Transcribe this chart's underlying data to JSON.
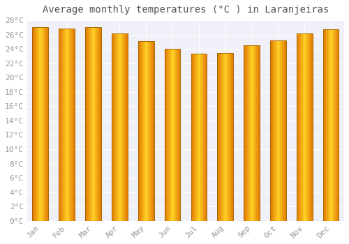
{
  "title": "Average monthly temperatures (°C ) in Laranjeiras",
  "months": [
    "Jan",
    "Feb",
    "Mar",
    "Apr",
    "May",
    "Jun",
    "Jul",
    "Aug",
    "Sep",
    "Oct",
    "Nov",
    "Dec"
  ],
  "values": [
    27.0,
    26.8,
    27.0,
    26.2,
    25.1,
    24.0,
    23.3,
    23.4,
    24.5,
    25.2,
    26.2,
    26.7
  ],
  "bar_color_center": "#FFB800",
  "bar_color_edge": "#E07800",
  "bar_outline_color": "#AA6600",
  "ylim": [
    0,
    28
  ],
  "ytick_step": 2,
  "background_color": "#FFFFFF",
  "plot_bg_color": "#F0F0F8",
  "grid_color": "#FFFFFF",
  "title_fontsize": 10,
  "tick_fontsize": 8,
  "title_font": "monospace",
  "tick_font": "monospace",
  "tick_color": "#999999"
}
